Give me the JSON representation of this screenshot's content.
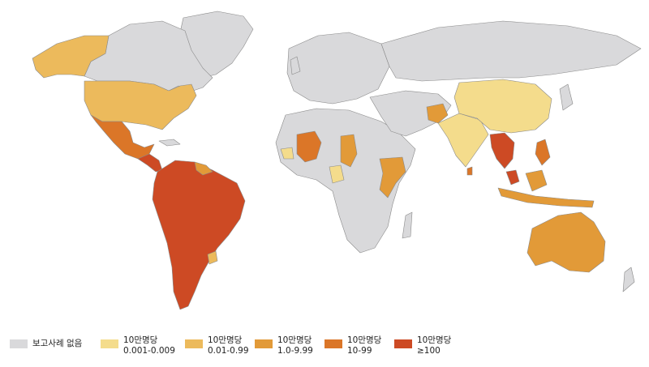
{
  "colors": {
    "ocean": "#ffffff",
    "no_report": "#d9d9db",
    "border": "#8a8a8a",
    "c1": "#f4dc8c",
    "c2": "#ecba5c",
    "c3": "#e29a38",
    "c4": "#db7628",
    "c5": "#cd4a24"
  },
  "legend": {
    "no_report": {
      "label": "보고사례 없음",
      "color": "#d9d9db"
    },
    "classes": [
      {
        "line1": "10만명당",
        "line2": "0.001-0.009",
        "color": "#f4dc8c"
      },
      {
        "line1": "10만명당",
        "line2": "0.01-0.99",
        "color": "#ecba5c"
      },
      {
        "line1": "10만명당",
        "line2": "1.0-9.99",
        "color": "#e29a38"
      },
      {
        "line1": "10만명당",
        "line2": "10-99",
        "color": "#db7628"
      },
      {
        "line1": "10만명당",
        "line2": "≥100",
        "color": "#cd4a24"
      }
    ]
  }
}
